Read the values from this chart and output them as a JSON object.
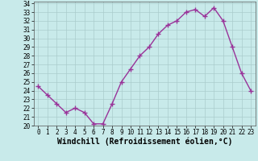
{
  "x": [
    0,
    1,
    2,
    3,
    4,
    5,
    6,
    7,
    8,
    9,
    10,
    11,
    12,
    13,
    14,
    15,
    16,
    17,
    18,
    19,
    20,
    21,
    22,
    23
  ],
  "y": [
    24.5,
    23.5,
    22.5,
    21.5,
    22.0,
    21.5,
    20.2,
    20.2,
    22.5,
    25.0,
    26.5,
    28.0,
    29.0,
    30.5,
    31.5,
    32.0,
    33.0,
    33.3,
    32.5,
    33.5,
    32.0,
    29.0,
    26.0,
    24.0
  ],
  "line_color": "#993399",
  "marker": "+",
  "marker_size": 4,
  "marker_color": "#993399",
  "bg_color": "#c8eaea",
  "grid_color": "#aacccc",
  "xlabel": "Windchill (Refroidissement éolien,°C)",
  "xlabel_fontsize": 7,
  "ylim": [
    20,
    34
  ],
  "xlim": [
    -0.5,
    23.5
  ],
  "yticks": [
    20,
    21,
    22,
    23,
    24,
    25,
    26,
    27,
    28,
    29,
    30,
    31,
    32,
    33,
    34
  ],
  "xticks": [
    0,
    1,
    2,
    3,
    4,
    5,
    6,
    7,
    8,
    9,
    10,
    11,
    12,
    13,
    14,
    15,
    16,
    17,
    18,
    19,
    20,
    21,
    22,
    23
  ],
  "tick_fontsize": 5.5,
  "line_width": 1.0
}
